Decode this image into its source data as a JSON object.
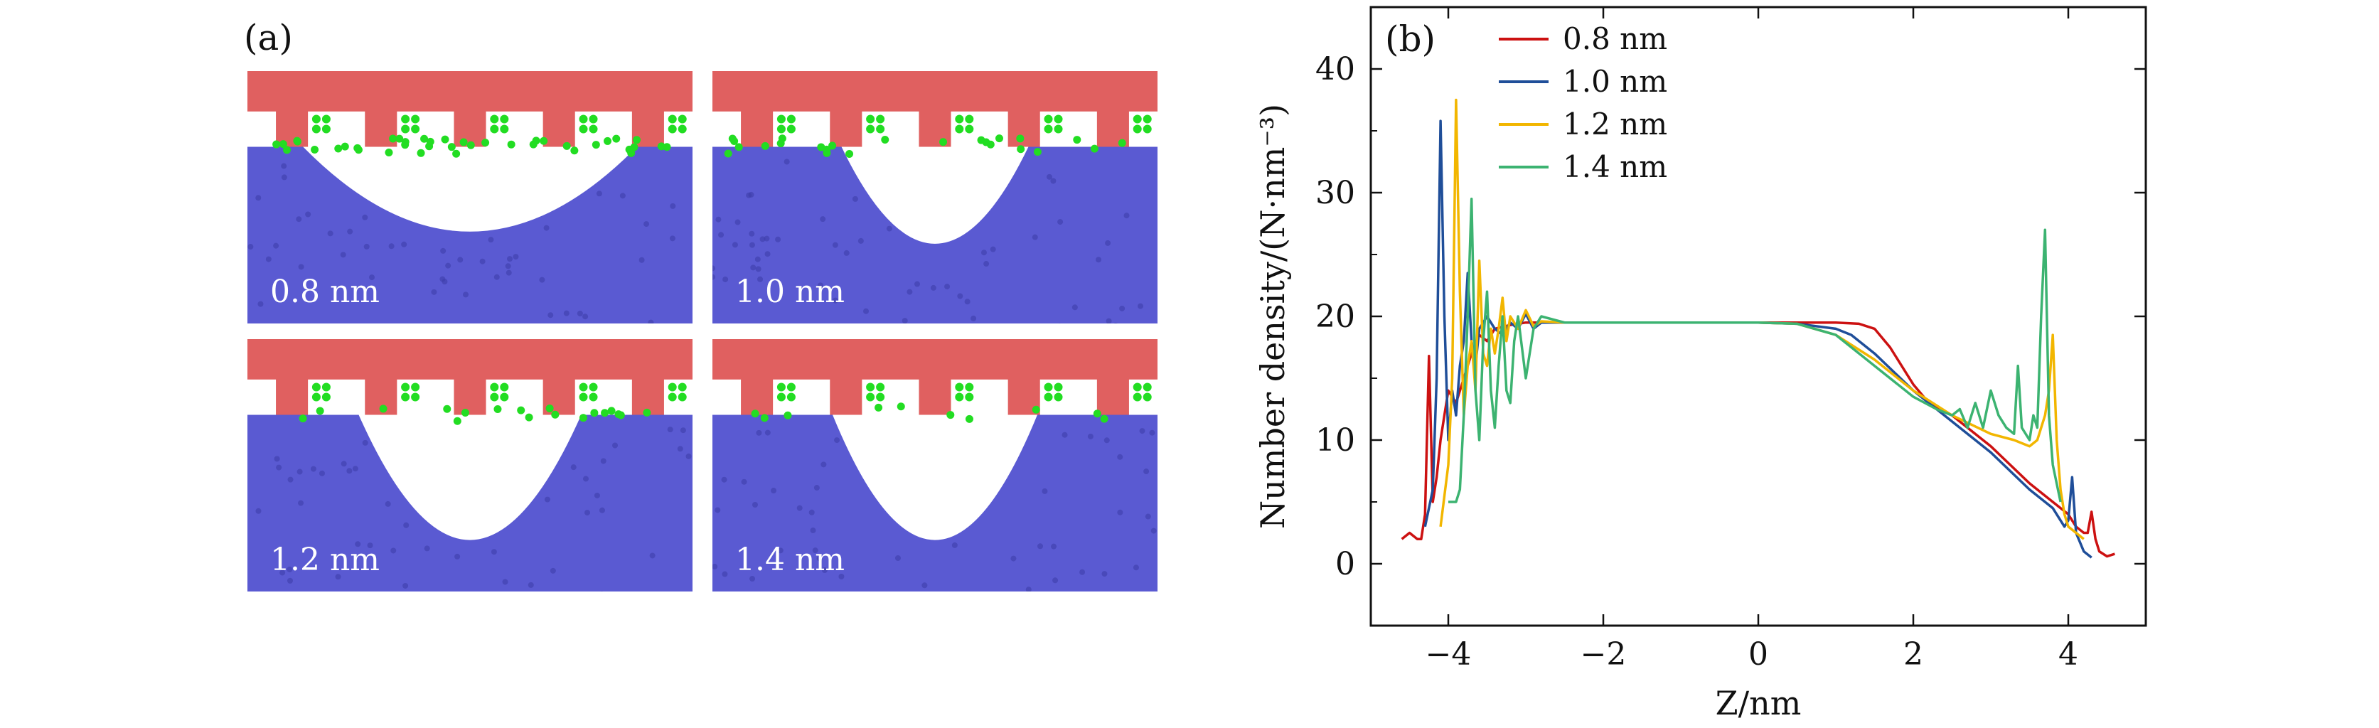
{
  "panel_a": {
    "label": "(a)",
    "snapshots": [
      {
        "label": "0.8 nm",
        "pit_width": 0.75,
        "pit_depth": 0.42,
        "green_density": 1.0
      },
      {
        "label": "1.0 nm",
        "pit_width": 0.42,
        "pit_depth": 0.48,
        "green_density": 0.6
      },
      {
        "label": "1.2 nm",
        "pit_width": 0.5,
        "pit_depth": 0.62,
        "green_density": 0.45
      },
      {
        "label": "1.4 nm",
        "pit_width": 0.46,
        "pit_depth": 0.62,
        "green_density": 0.25
      }
    ],
    "colors": {
      "wall": "#e06060",
      "ion": "#22dd22",
      "liquid": "#5a5ad2"
    }
  },
  "chart_data": {
    "type": "line",
    "panel_label": "(b)",
    "xlabel": "Z/nm",
    "ylabel": "Number density/(N·nm⁻³)",
    "xlim": [
      -5,
      5
    ],
    "ylim": [
      -5,
      45
    ],
    "xticks": [
      -4,
      -2,
      0,
      2,
      4
    ],
    "xtick_labels": [
      "−4",
      "−2",
      "0",
      "2",
      "4"
    ],
    "yticks": [
      0,
      10,
      20,
      30,
      40
    ],
    "ytick_labels": [
      "0",
      "10",
      "20",
      "30",
      "40"
    ],
    "legend_position": "top-left",
    "series": [
      {
        "name": "0.8 nm",
        "color": "#cc1111",
        "x": [
          -4.6,
          -4.5,
          -4.4,
          -4.35,
          -4.3,
          -4.25,
          -4.2,
          -4.15,
          -4.1,
          -4.05,
          -4.0,
          -3.9,
          -3.8,
          -3.7,
          -3.6,
          -3.5,
          -3.4,
          -3.2,
          -3.0,
          -2.8,
          -2.5,
          -2.0,
          -1.0,
          0.0,
          1.0,
          1.3,
          1.5,
          1.7,
          1.9,
          2.0,
          2.2,
          2.5,
          3.0,
          3.5,
          3.8,
          4.0,
          4.1,
          4.2,
          4.25,
          4.3,
          4.35,
          4.4,
          4.5,
          4.6
        ],
        "y": [
          2,
          2.5,
          2,
          2,
          4,
          16.8,
          5,
          7,
          10,
          12,
          14,
          13,
          15,
          17,
          18.5,
          18,
          19,
          19.3,
          19.5,
          19.5,
          19.5,
          19.5,
          19.5,
          19.5,
          19.5,
          19.4,
          19,
          17.5,
          15.5,
          14.5,
          13,
          12,
          9.5,
          6.5,
          5,
          4,
          3,
          2.5,
          2.5,
          4.2,
          2,
          1,
          0.6,
          0.8
        ]
      },
      {
        "name": "1.0 nm",
        "color": "#1f4e99",
        "x": [
          -4.3,
          -4.2,
          -4.15,
          -4.1,
          -4.05,
          -4.0,
          -3.95,
          -3.9,
          -3.85,
          -3.8,
          -3.75,
          -3.7,
          -3.65,
          -3.6,
          -3.5,
          -3.4,
          -3.3,
          -3.2,
          -3.1,
          -3.0,
          -2.9,
          -2.8,
          -2.5,
          -2.0,
          -1.0,
          0.0,
          0.5,
          1.0,
          1.2,
          1.5,
          2.0,
          2.5,
          3.0,
          3.5,
          3.7,
          3.8,
          3.9,
          3.95,
          4.0,
          4.05,
          4.1,
          4.2,
          4.3
        ],
        "y": [
          3,
          6,
          15,
          35.8,
          20,
          10,
          14,
          12,
          16,
          18,
          23.5,
          18,
          16,
          19,
          20,
          19,
          18.5,
          19.5,
          19,
          20.2,
          19,
          19.5,
          19.5,
          19.5,
          19.5,
          19.5,
          19.4,
          19,
          18.5,
          17,
          14,
          11.5,
          9,
          6,
          5,
          4.5,
          3.5,
          3,
          3.5,
          7,
          2.5,
          1,
          0.5
        ]
      },
      {
        "name": "1.2 nm",
        "color": "#f2b600",
        "x": [
          -4.1,
          -4.0,
          -3.95,
          -3.9,
          -3.85,
          -3.8,
          -3.75,
          -3.7,
          -3.65,
          -3.6,
          -3.55,
          -3.5,
          -3.45,
          -3.4,
          -3.35,
          -3.3,
          -3.25,
          -3.2,
          -3.1,
          -3.0,
          -2.9,
          -2.8,
          -2.5,
          -2.0,
          -1.0,
          0.0,
          0.5,
          1.0,
          1.5,
          2.0,
          2.5,
          3.0,
          3.3,
          3.5,
          3.6,
          3.7,
          3.75,
          3.8,
          3.85,
          3.9,
          3.95,
          4.0,
          4.1,
          4.2
        ],
        "y": [
          3,
          8,
          15,
          37.5,
          22,
          12,
          16,
          18,
          14,
          24.5,
          17,
          16,
          19,
          17,
          19,
          21.5,
          18,
          20,
          19,
          20.5,
          19.2,
          19.6,
          19.5,
          19.5,
          19.5,
          19.5,
          19.4,
          18.5,
          16.5,
          14,
          12,
          10.5,
          10,
          9.5,
          10,
          12,
          14,
          18.5,
          10,
          6,
          4,
          3,
          2.5,
          2
        ]
      },
      {
        "name": "1.4 nm",
        "color": "#3cb371",
        "x": [
          -4.0,
          -3.9,
          -3.85,
          -3.8,
          -3.75,
          -3.7,
          -3.65,
          -3.6,
          -3.55,
          -3.5,
          -3.45,
          -3.4,
          -3.35,
          -3.3,
          -3.25,
          -3.2,
          -3.15,
          -3.1,
          -3.0,
          -2.9,
          -2.8,
          -2.5,
          -2.0,
          -1.0,
          0.0,
          0.5,
          1.0,
          1.5,
          2.0,
          2.3,
          2.5,
          2.6,
          2.7,
          2.8,
          2.9,
          3.0,
          3.1,
          3.2,
          3.3,
          3.35,
          3.4,
          3.5,
          3.55,
          3.6,
          3.65,
          3.7,
          3.75,
          3.8,
          3.9
        ],
        "y": [
          5,
          5,
          6,
          12,
          20,
          29.5,
          14,
          10,
          18,
          22,
          14,
          11,
          16,
          20,
          14,
          13,
          18,
          20,
          15,
          19,
          20,
          19.5,
          19.5,
          19.5,
          19.5,
          19.4,
          18.5,
          16,
          13.5,
          12.5,
          12,
          12.5,
          11,
          13,
          11,
          14,
          12,
          11,
          10.5,
          16,
          11,
          10,
          12,
          11,
          20,
          27,
          12,
          8,
          5
        ]
      }
    ]
  }
}
